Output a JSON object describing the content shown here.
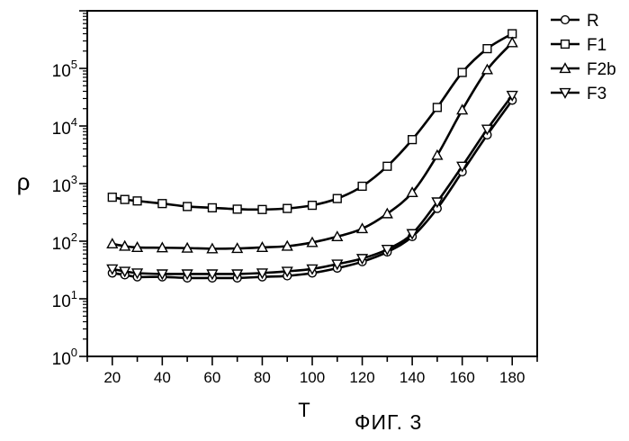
{
  "figure": {
    "caption": "ФИГ. 3"
  },
  "chart_data": {
    "type": "line",
    "xlabel": "T",
    "ylabel": "ρ",
    "xlim": [
      10,
      190
    ],
    "ylim": [
      1,
      1000000
    ],
    "yscale": "log",
    "x_ticks": [
      20,
      40,
      60,
      80,
      100,
      120,
      140,
      160,
      180
    ],
    "y_ticks": [
      {
        "value": 1,
        "base": "10",
        "exp": "0"
      },
      {
        "value": 10,
        "base": "10",
        "exp": "1"
      },
      {
        "value": 100,
        "base": "10",
        "exp": "2"
      },
      {
        "value": 1000,
        "base": "10",
        "exp": "3"
      },
      {
        "value": 10000,
        "base": "10",
        "exp": "4"
      },
      {
        "value": 100000,
        "base": "10",
        "exp": "5"
      }
    ],
    "grid": false,
    "legend_position": "right",
    "x": [
      20,
      25,
      30,
      40,
      50,
      60,
      70,
      80,
      90,
      100,
      110,
      120,
      130,
      140,
      150,
      160,
      170,
      180
    ],
    "series": [
      {
        "name": "R",
        "marker": "circle",
        "values": [
          28,
          26,
          24,
          24,
          23,
          23,
          23,
          24,
          25,
          28,
          34,
          44,
          65,
          120,
          370,
          1600,
          7000,
          28000
        ]
      },
      {
        "name": "F1",
        "marker": "square",
        "values": [
          580,
          530,
          500,
          450,
          400,
          380,
          360,
          355,
          370,
          420,
          550,
          900,
          2000,
          5800,
          21000,
          85000,
          220000,
          400000
        ]
      },
      {
        "name": "F2b",
        "marker": "triangle-up",
        "values": [
          90,
          82,
          78,
          77,
          76,
          74,
          75,
          78,
          82,
          95,
          120,
          165,
          300,
          700,
          3100,
          19000,
          95000,
          280000
        ]
      },
      {
        "name": "F3",
        "marker": "triangle-down",
        "values": [
          33,
          30,
          28,
          27,
          27,
          27,
          27,
          28,
          30,
          33,
          40,
          50,
          72,
          135,
          480,
          2000,
          8800,
          34000
        ]
      }
    ]
  }
}
